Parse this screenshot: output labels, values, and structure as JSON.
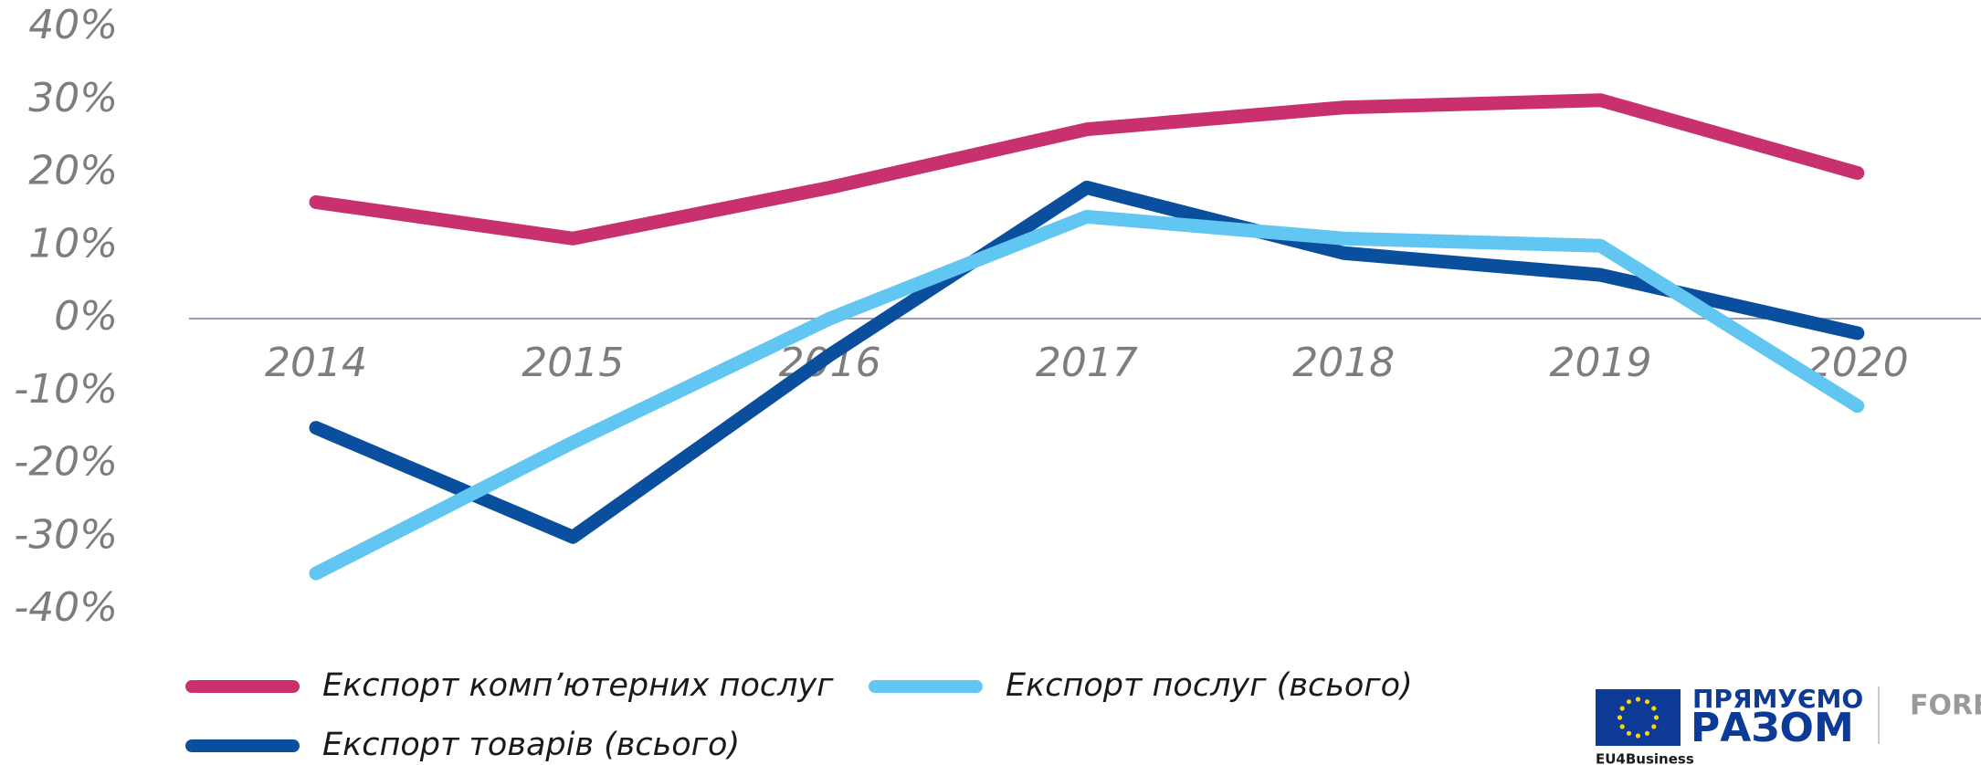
{
  "chart_data": {
    "type": "line",
    "categories": [
      "2014",
      "2015",
      "2016",
      "2017",
      "2018",
      "2019",
      "2020"
    ],
    "series": [
      {
        "name": "Експорт комп’ютерних послуг",
        "color": "#c8306e",
        "values": [
          16,
          11,
          18,
          26,
          29,
          30,
          20
        ]
      },
      {
        "name": "Експорт товарів (всього)",
        "color": "#0a4f9e",
        "values": [
          -15,
          -30,
          -5,
          18,
          9,
          6,
          -2
        ]
      },
      {
        "name": "Експорт послуг (всього)",
        "color": "#62c6f2",
        "values": [
          -35,
          -17,
          0,
          14,
          11,
          10,
          -12
        ]
      }
    ],
    "ylim": [
      -40,
      40
    ],
    "yticks": [
      {
        "value": -40,
        "label": "-40%"
      },
      {
        "value": -30,
        "label": "-30%"
      },
      {
        "value": -20,
        "label": "-20%"
      },
      {
        "value": -10,
        "label": "-10%"
      },
      {
        "value": 0,
        "label": "0%"
      },
      {
        "value": 10,
        "label": "10%"
      },
      {
        "value": 20,
        "label": "20%"
      },
      {
        "value": 30,
        "label": "30%"
      },
      {
        "value": 40,
        "label": "40%"
      }
    ],
    "grid": false,
    "legend": "bottom"
  },
  "logos": {
    "program_line1": "ПРЯМУЄМО",
    "program_line2": "РАЗОМ",
    "eu": "EU4Business",
    "partner": "FORBES"
  }
}
